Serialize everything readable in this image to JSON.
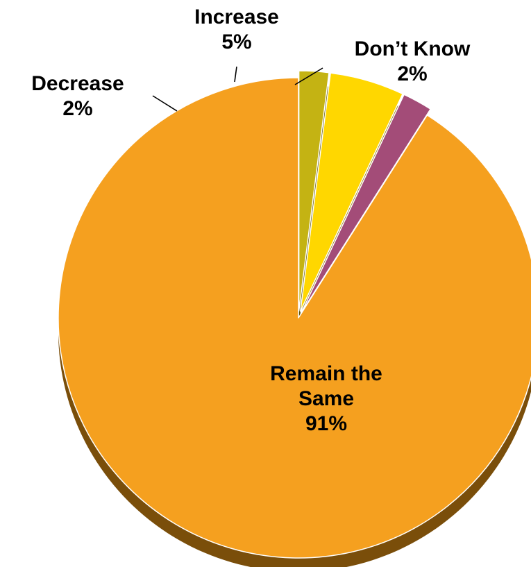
{
  "chart_data": {
    "type": "pie",
    "title": "",
    "start": "top",
    "direction": "counterclockwise",
    "slices": [
      {
        "label": "Remain the Same",
        "label_lines": [
          "Remain the",
          "Same",
          "91%"
        ],
        "value": 91,
        "percent_label": "91%",
        "color": "#F5A01F",
        "side_color": "#7A4E0A"
      },
      {
        "label": "Decrease",
        "label_lines": [
          "Decrease",
          "2%"
        ],
        "value": 2,
        "percent_label": "2%",
        "color": "#A34C78",
        "side_color": "#4E1E38"
      },
      {
        "label": "Increase",
        "label_lines": [
          "Increase",
          "5%"
        ],
        "value": 5,
        "percent_label": "5%",
        "color": "#FFD700",
        "side_color": "#8A7300"
      },
      {
        "label": "Don’t Know",
        "label_lines": [
          "Don’t Know",
          "2%"
        ],
        "value": 2,
        "percent_label": "2%",
        "color": "#C4B313",
        "side_color": "#5E540A"
      }
    ],
    "legend": "none",
    "style": "3d-tilted"
  }
}
